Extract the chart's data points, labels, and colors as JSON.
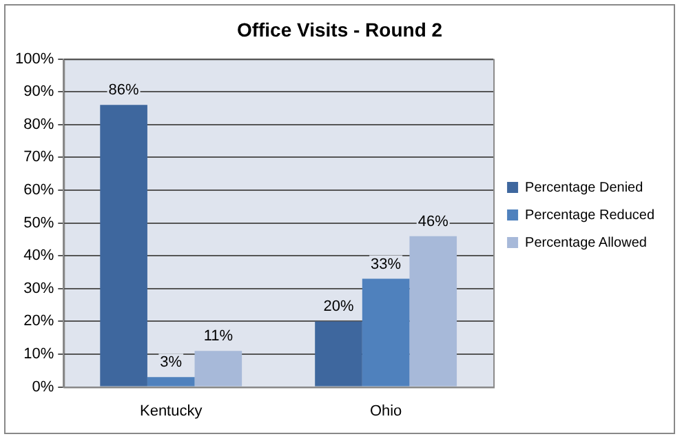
{
  "chart_data": {
    "type": "bar",
    "title": "Office Visits - Round 2",
    "categories": [
      "Kentucky",
      "Ohio"
    ],
    "series": [
      {
        "name": "Percentage Denied",
        "color": "#3e679e",
        "values": [
          86,
          20
        ],
        "value_labels": [
          "86%",
          "20%"
        ]
      },
      {
        "name": "Percentage Reduced",
        "color": "#4f81bd",
        "values": [
          3,
          33
        ],
        "value_labels": [
          "3%",
          "33%"
        ]
      },
      {
        "name": "Percentage Allowed",
        "color": "#a7b9d9",
        "values": [
          11,
          46
        ],
        "value_labels": [
          "11%",
          "46%"
        ]
      }
    ],
    "ylim": [
      0,
      100
    ],
    "yticks": [
      {
        "value": 0,
        "label": "0%"
      },
      {
        "value": 10,
        "label": "10%"
      },
      {
        "value": 20,
        "label": "20%"
      },
      {
        "value": 30,
        "label": "30%"
      },
      {
        "value": 40,
        "label": "40%"
      },
      {
        "value": 50,
        "label": "50%"
      },
      {
        "value": 60,
        "label": "60%"
      },
      {
        "value": 70,
        "label": "70%"
      },
      {
        "value": 80,
        "label": "80%"
      },
      {
        "value": 90,
        "label": "90%"
      },
      {
        "value": 100,
        "label": "100%"
      }
    ],
    "grid": "y",
    "legend": "right"
  }
}
